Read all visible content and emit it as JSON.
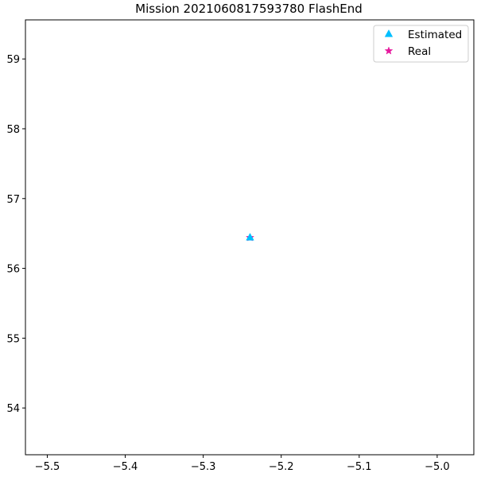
{
  "chart_data": {
    "type": "scatter",
    "title": "Mission 2021060817593780 FlashEnd",
    "xlabel": "",
    "ylabel": "",
    "xlim": [
      -5.528,
      -4.953
    ],
    "ylim": [
      53.33,
      59.56
    ],
    "xticks": [
      {
        "value": -5.5,
        "label": "−5.5"
      },
      {
        "value": -5.4,
        "label": "−5.4"
      },
      {
        "value": -5.3,
        "label": "−5.3"
      },
      {
        "value": -5.2,
        "label": "−5.2"
      },
      {
        "value": -5.1,
        "label": "−5.1"
      },
      {
        "value": -5.0,
        "label": "−5.0"
      }
    ],
    "yticks": [
      {
        "value": 54,
        "label": "54"
      },
      {
        "value": 55,
        "label": "55"
      },
      {
        "value": 56,
        "label": "56"
      },
      {
        "value": 57,
        "label": "57"
      },
      {
        "value": 58,
        "label": "58"
      },
      {
        "value": 59,
        "label": "59"
      }
    ],
    "grid": false,
    "legend_position": "top-right",
    "series": [
      {
        "name": "Estimated",
        "marker": "triangle",
        "color": "#00bfff",
        "points": [
          {
            "x": -5.24,
            "y": 56.44
          }
        ]
      },
      {
        "name": "Real",
        "marker": "star",
        "color": "#e6199e",
        "points": [
          {
            "x": -5.24,
            "y": 56.44
          }
        ]
      }
    ]
  }
}
